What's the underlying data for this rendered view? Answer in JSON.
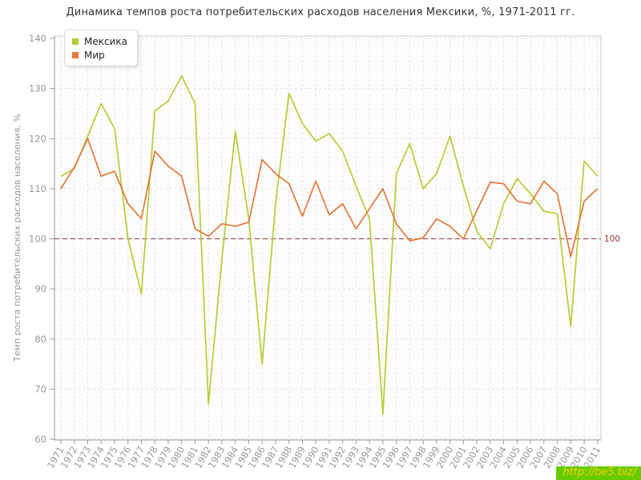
{
  "title": "Динамика темпов роста потребительских расходов населения Мексики, %, 1971-2011 гг.",
  "watermark": {
    "text": "http://be5.biz/",
    "bg_color": "#66cc00",
    "text_color": "#ffcc00"
  },
  "axis": {
    "tick_label_color": "#999999",
    "axis_color": "#999999",
    "grid_color": "#e0e0e0",
    "plot_bg": "#fdfdfd",
    "plot_border": "#cccccc"
  },
  "chart_data": {
    "type": "line",
    "title": "Динамика темпов роста потребительских расходов населения Мексики, %, 1971-2011 гг.",
    "xlabel": "",
    "ylabel": "Темп роста потребительских расходов населения, %",
    "ylim": [
      60,
      140
    ],
    "yticks": [
      60,
      70,
      80,
      90,
      100,
      110,
      120,
      130,
      140
    ],
    "grid": "dashed",
    "legend_position": "top-left",
    "baseline": {
      "value": 100,
      "label": "100",
      "color": "#993333"
    },
    "x": [
      1971,
      1972,
      1973,
      1974,
      1975,
      1976,
      1977,
      1978,
      1979,
      1980,
      1981,
      1982,
      1983,
      1984,
      1985,
      1986,
      1987,
      1988,
      1989,
      1990,
      1991,
      1992,
      1993,
      1994,
      1995,
      1996,
      1997,
      1998,
      1999,
      2000,
      2001,
      2002,
      2003,
      2004,
      2005,
      2006,
      2007,
      2008,
      2009,
      2010,
      2011
    ],
    "series": [
      {
        "name": "Мексика",
        "slug": "mexico",
        "color": "#b5cd35",
        "values": [
          112.5,
          114,
          120.5,
          127,
          122,
          100,
          89,
          125.5,
          127.5,
          132.5,
          127,
          67,
          96,
          121.5,
          104,
          75,
          107,
          129,
          123,
          119.5,
          121,
          117.5,
          110.5,
          104,
          65,
          113,
          119,
          110,
          113,
          120.5,
          110.5,
          101.5,
          98,
          107,
          112,
          109,
          105.5,
          105,
          82.5,
          115.5,
          112.5
        ]
      },
      {
        "name": "Мир",
        "slug": "world",
        "color": "#e5773b",
        "values": [
          110,
          114.3,
          120,
          112.5,
          113.5,
          107,
          104,
          117.5,
          114.5,
          112.5,
          102,
          100.5,
          103,
          102.5,
          103.3,
          115.8,
          113,
          111,
          104.5,
          111.5,
          104.8,
          107,
          102,
          106,
          110,
          103,
          99.6,
          100.2,
          104,
          102.5,
          100,
          105.6,
          111.3,
          111,
          107.5,
          107,
          111.5,
          109,
          96.4,
          107.5,
          110
        ]
      }
    ]
  }
}
